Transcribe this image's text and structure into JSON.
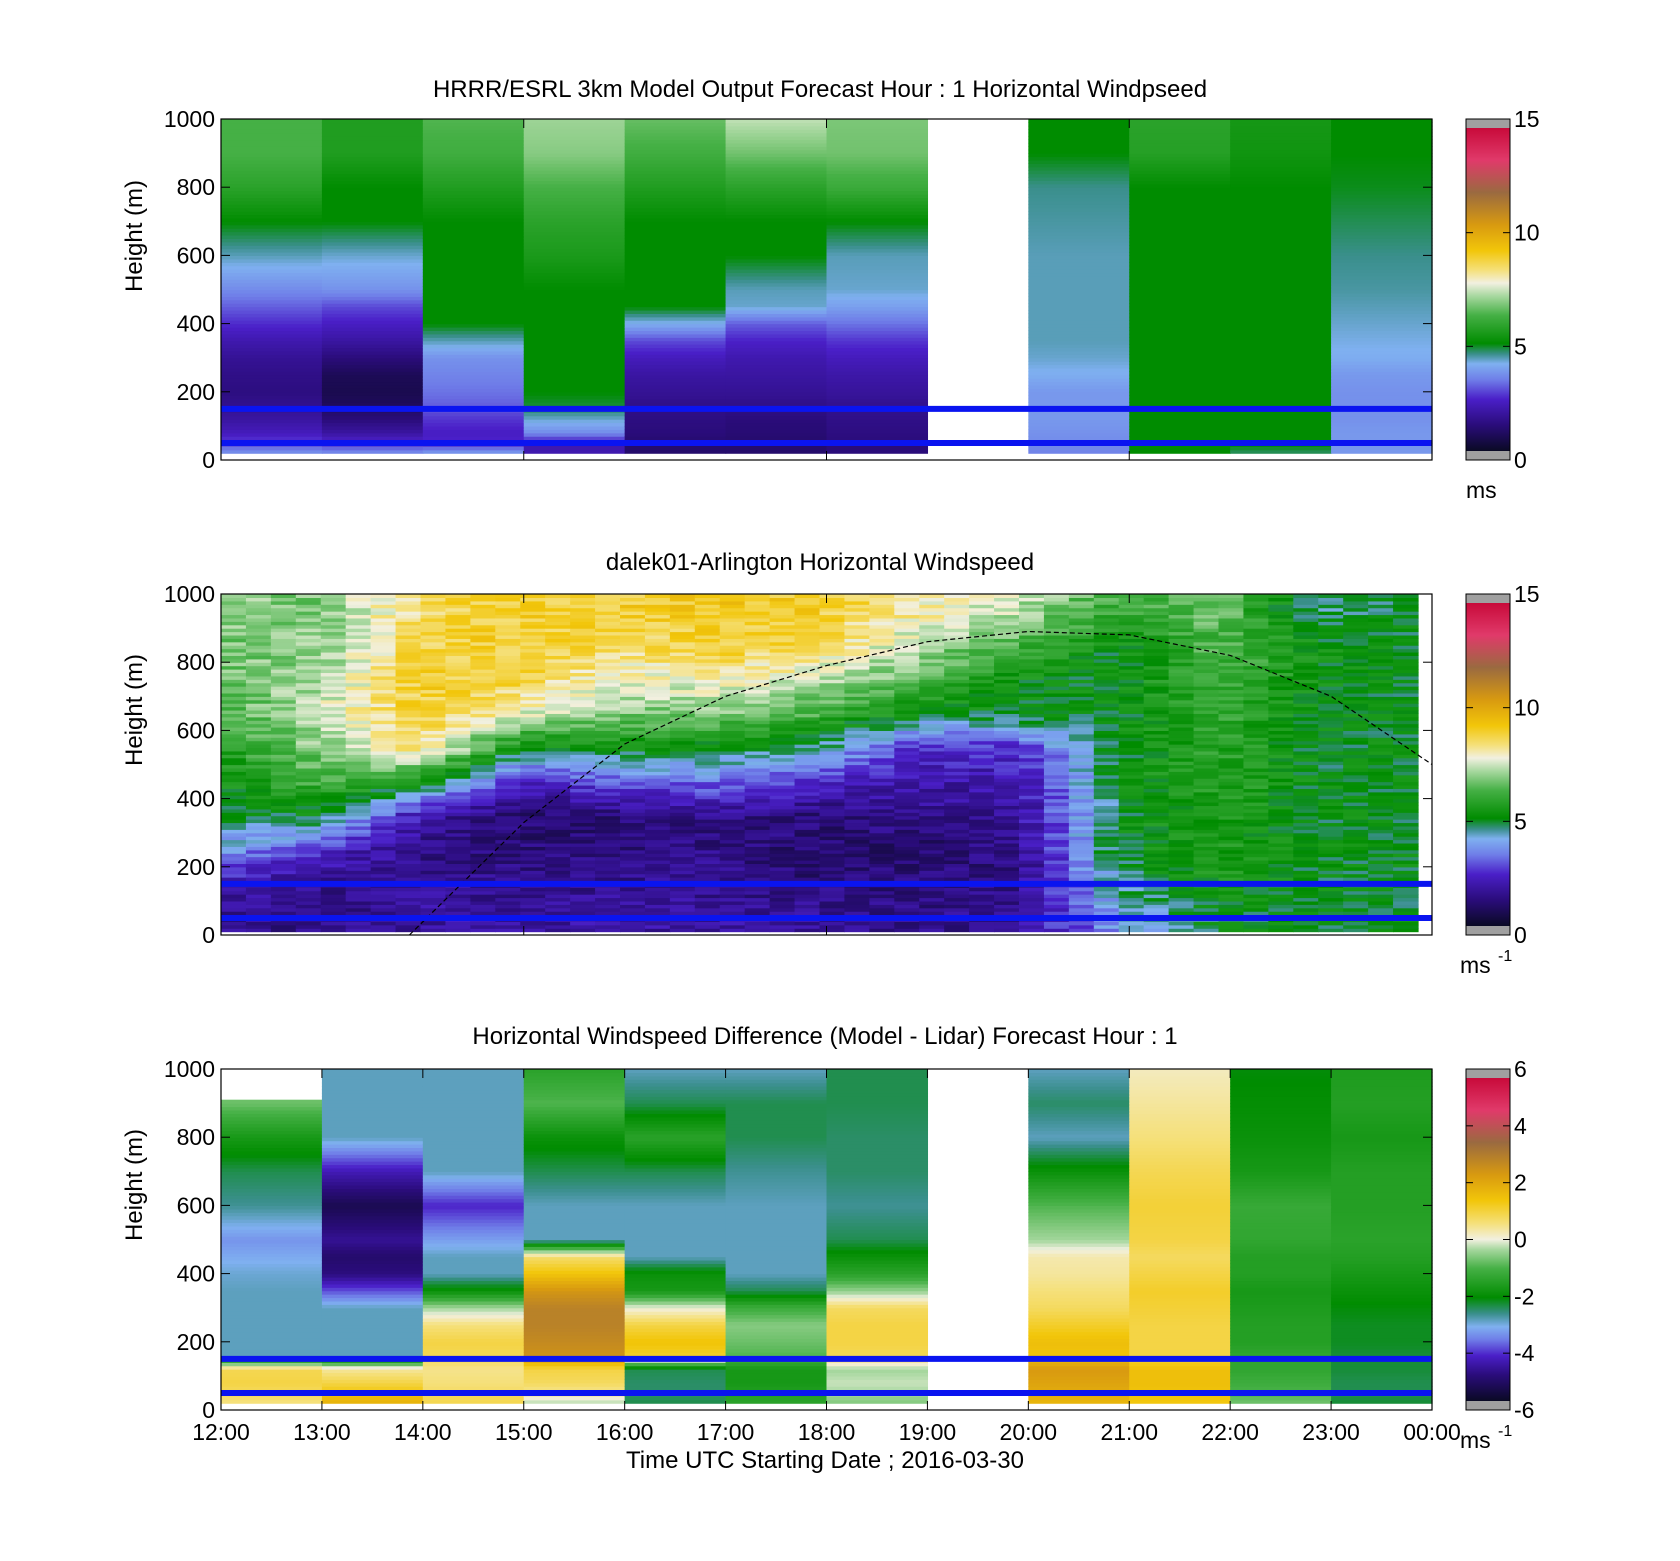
{
  "chart_data": [
    {
      "type": "heatmap",
      "title": "HRRR/ESRL 3km Model Output   Forecast Hour : 1 Horizontal Windpseed",
      "ylabel": "Height (m)",
      "xlabel": "",
      "ylim": [
        0,
        1000
      ],
      "yticks": [
        "0",
        "200",
        "400",
        "600",
        "800",
        "1000"
      ],
      "xticks": [
        "12:00",
        "15:00",
        "18:00",
        "21:00",
        "00:00"
      ],
      "show_xtick_labels": false,
      "colorbar": {
        "min": 0,
        "max": 15,
        "ticks": [
          "0",
          "5",
          "10",
          "15"
        ],
        "unit": "ms",
        "unit_sup": ""
      },
      "x_hours": [
        "12:00",
        "13:00",
        "14:00",
        "15:00",
        "16:00",
        "17:00",
        "18:00",
        "19:00",
        "20:00",
        "21:00",
        "22:00",
        "23:00"
      ],
      "height_levels_m": [
        25,
        50,
        80,
        120,
        160,
        200,
        250,
        300,
        350,
        400,
        450,
        500,
        600,
        700,
        800,
        900,
        1000
      ],
      "values": [
        [
          3.5,
          2.8,
          2.2,
          1.8,
          1.5,
          1.3,
          1.4,
          1.6,
          2.0,
          2.5,
          3.0,
          3.5,
          4.3,
          5.0,
          5.8,
          6.3,
          6.3
        ],
        [
          3.4,
          2.6,
          1.8,
          1.2,
          0.8,
          0.6,
          0.7,
          1.2,
          1.8,
          2.3,
          2.8,
          3.6,
          4.2,
          5.0,
          5.0,
          5.6,
          5.6
        ],
        [
          3.6,
          2.5,
          2.3,
          2.6,
          3.0,
          3.2,
          3.4,
          3.6,
          4.3,
          5.0,
          5.0,
          5.0,
          5.0,
          5.0,
          5.6,
          6.2,
          6.4
        ],
        [
          2.0,
          2.0,
          3.5,
          4.2,
          4.8,
          5.0,
          5.0,
          5.0,
          5.0,
          5.0,
          5.0,
          5.0,
          5.5,
          5.8,
          6.3,
          6.9,
          7.1
        ],
        [
          1.0,
          1.0,
          1.2,
          1.3,
          1.4,
          1.6,
          1.8,
          2.2,
          2.8,
          4.0,
          5.0,
          5.0,
          5.0,
          5.0,
          5.6,
          6.2,
          6.6
        ],
        [
          1.0,
          1.0,
          1.1,
          1.2,
          1.4,
          1.6,
          1.8,
          2.0,
          2.4,
          3.0,
          4.2,
          4.3,
          5.0,
          5.0,
          5.8,
          6.7,
          7.4
        ],
        [
          1.2,
          1.2,
          1.3,
          1.4,
          1.5,
          1.7,
          1.9,
          2.2,
          2.6,
          3.2,
          3.8,
          4.2,
          4.3,
          5.0,
          6.1,
          6.7,
          6.8
        ],
        [
          null,
          null,
          null,
          null,
          null,
          null,
          null,
          null,
          null,
          null,
          null,
          null,
          null,
          null,
          null,
          null,
          null
        ],
        [
          3.4,
          3.5,
          3.6,
          3.7,
          3.7,
          3.7,
          4.0,
          4.2,
          4.3,
          4.3,
          4.3,
          4.3,
          4.3,
          4.4,
          4.5,
          5.0,
          5.0
        ],
        [
          5.0,
          5.0,
          5.0,
          5.0,
          5.0,
          5.0,
          5.0,
          5.0,
          5.0,
          5.0,
          5.0,
          5.0,
          5.0,
          5.0,
          5.0,
          5.7,
          5.8
        ],
        [
          4.7,
          5.0,
          5.0,
          5.0,
          5.0,
          5.0,
          5.0,
          5.0,
          5.0,
          5.0,
          5.0,
          5.0,
          5.0,
          5.0,
          5.0,
          5.3,
          5.4
        ],
        [
          3.7,
          3.7,
          3.7,
          3.6,
          3.6,
          3.6,
          3.7,
          4.0,
          4.1,
          4.2,
          4.3,
          4.4,
          4.5,
          4.7,
          4.9,
          5.0,
          5.0
        ]
      ],
      "reference_lines_m": [
        50,
        150
      ]
    },
    {
      "type": "heatmap",
      "title": "dalek01-Arlington  Horizontal Windspeed",
      "ylabel": "Height (m)",
      "xlabel": "",
      "ylim": [
        0,
        1000
      ],
      "yticks": [
        "0",
        "200",
        "400",
        "600",
        "800",
        "1000"
      ],
      "xticks": [
        "12:00",
        "15:00",
        "18:00",
        "21:00",
        "00:00"
      ],
      "show_xtick_labels": false,
      "colorbar": {
        "min": 0,
        "max": 15,
        "ticks": [
          "0",
          "5",
          "10",
          "15"
        ],
        "unit": "ms",
        "unit_sup": "-1"
      },
      "profile_samples": [
        {
          "time": "12:00",
          "h": [
            50,
            150,
            250,
            350,
            450,
            550,
            650,
            750,
            850,
            950
          ],
          "v": [
            1.5,
            2.0,
            3.8,
            4.8,
            5.2,
            5.6,
            6.2,
            6.6,
            6.8,
            7.0
          ]
        },
        {
          "time": "13:00",
          "h": [
            50,
            150,
            250,
            350,
            450,
            550,
            650,
            750,
            850,
            950
          ],
          "v": [
            1.4,
            1.5,
            2.4,
            5.0,
            6.2,
            7.0,
            7.5,
            7.2,
            7.0,
            6.8
          ]
        },
        {
          "time": "14:00",
          "h": [
            50,
            150,
            250,
            350,
            450,
            550,
            650,
            750,
            850,
            950
          ],
          "v": [
            1.8,
            1.6,
            1.4,
            1.8,
            5.5,
            8.5,
            9.0,
            9.0,
            8.8,
            8.6
          ]
        },
        {
          "time": "15:00",
          "h": [
            50,
            150,
            250,
            350,
            450,
            550,
            650,
            750,
            850,
            950
          ],
          "v": [
            1.8,
            1.5,
            1.2,
            1.0,
            2.2,
            5.0,
            7.8,
            8.8,
            9.0,
            9.0
          ]
        },
        {
          "time": "16:00",
          "h": [
            50,
            150,
            250,
            350,
            450,
            550,
            650,
            750,
            850,
            950
          ],
          "v": [
            1.8,
            1.5,
            1.2,
            1.2,
            3.0,
            5.2,
            6.8,
            7.8,
            8.5,
            9.0
          ]
        },
        {
          "time": "17:00",
          "h": [
            50,
            150,
            250,
            350,
            450,
            550,
            650,
            750,
            850,
            950
          ],
          "v": [
            1.8,
            1.5,
            1.4,
            1.4,
            3.2,
            5.0,
            6.8,
            8.0,
            9.0,
            9.2
          ]
        },
        {
          "time": "18:00",
          "h": [
            50,
            150,
            250,
            350,
            450,
            550,
            650,
            750,
            850,
            950
          ],
          "v": [
            1.6,
            1.2,
            1.0,
            1.2,
            2.4,
            4.5,
            6.2,
            7.4,
            8.6,
            9.0
          ]
        },
        {
          "time": "19:00",
          "h": [
            50,
            150,
            250,
            350,
            450,
            550,
            650,
            750,
            850,
            950
          ],
          "v": [
            1.4,
            1.2,
            1.0,
            1.5,
            1.8,
            2.4,
            5.0,
            6.5,
            7.2,
            8.2
          ]
        },
        {
          "time": "20:00",
          "h": [
            50,
            150,
            250,
            350,
            450,
            550,
            650,
            750,
            850,
            950
          ],
          "v": [
            1.6,
            1.4,
            1.4,
            1.6,
            2.0,
            2.6,
            5.0,
            5.2,
            6.2,
            7.4
          ]
        },
        {
          "time": "21:00",
          "h": [
            50,
            150,
            250,
            350,
            450,
            550,
            650,
            750,
            850,
            950
          ],
          "v": [
            3.8,
            4.5,
            5.0,
            5.0,
            5.0,
            5.0,
            5.0,
            5.0,
            5.0,
            6.0
          ]
        },
        {
          "time": "22:00",
          "h": [
            50,
            150,
            250,
            350,
            450,
            550,
            650,
            750,
            850,
            950
          ],
          "v": [
            5.0,
            5.4,
            5.6,
            5.6,
            5.8,
            5.8,
            6.0,
            6.2,
            6.4,
            6.6
          ]
        },
        {
          "time": "23:00",
          "h": [
            50,
            150,
            250,
            350,
            450,
            550,
            650,
            750,
            850,
            950
          ],
          "v": [
            5.0,
            5.0,
            5.0,
            5.0,
            5.0,
            5.0,
            5.0,
            5.2,
            5.2,
            4.5
          ]
        },
        {
          "time": "00:00",
          "h": [
            50,
            150,
            250,
            350,
            450,
            550,
            650,
            750,
            850,
            950
          ],
          "v": [
            5.0,
            5.0,
            5.0,
            5.0,
            5.0,
            5.0,
            5.0,
            5.0,
            5.0,
            5.0
          ]
        }
      ],
      "boundary_layer_curve": {
        "time": [
          "13:52",
          "15:00",
          "16:00",
          "17:00",
          "18:00",
          "19:00",
          "20:00",
          "21:00",
          "22:00",
          "23:00",
          "00:00"
        ],
        "height_m": [
          0,
          330,
          560,
          700,
          790,
          860,
          890,
          880,
          820,
          700,
          500
        ]
      },
      "reference_lines_m": [
        50,
        150
      ]
    },
    {
      "type": "heatmap",
      "title": "Horizontal Windspeed Difference (Model - Lidar) Forecast Hour : 1",
      "ylabel": "Height (m)",
      "xlabel": "Time UTC  Starting Date ; 2016-03-30",
      "ylim": [
        0,
        1000
      ],
      "yticks": [
        "0",
        "200",
        "400",
        "600",
        "800",
        "1000"
      ],
      "xticks": [
        "12:00",
        "13:00",
        "14:00",
        "15:00",
        "16:00",
        "17:00",
        "18:00",
        "19:00",
        "20:00",
        "21:00",
        "22:00",
        "23:00",
        "00:00"
      ],
      "show_xtick_labels": true,
      "colorbar": {
        "min": -6,
        "max": 6,
        "ticks": [
          "-6",
          "-4",
          "-2",
          "0",
          "2",
          "4",
          "6"
        ],
        "unit": "ms",
        "unit_sup": "-1"
      },
      "x_hours": [
        "12:00",
        "13:00",
        "14:00",
        "15:00",
        "16:00",
        "17:00",
        "18:00",
        "19:00",
        "20:00",
        "21:00",
        "22:00",
        "23:00"
      ],
      "height_levels_m": [
        25,
        50,
        80,
        120,
        160,
        200,
        250,
        300,
        350,
        400,
        450,
        500,
        600,
        700,
        800,
        900,
        1000
      ],
      "values": [
        [
          0.6,
          0.8,
          1.0,
          0.9,
          -3.0,
          -3.0,
          -3.0,
          -3.0,
          -3.0,
          -3.1,
          -3.3,
          -3.5,
          -2.8,
          -2.5,
          -1.8,
          -0.8,
          null
        ],
        [
          1.8,
          1.5,
          1.0,
          0.4,
          -3.0,
          -3.0,
          -3.0,
          -3.0,
          -4.0,
          -5.0,
          -5.2,
          -4.8,
          -5.5,
          -4.5,
          -3.0,
          -3.0,
          -3.0
        ],
        [
          0.9,
          0.8,
          0.6,
          0.5,
          0.9,
          1.0,
          0.6,
          -0.4,
          -2.0,
          -3.0,
          -3.0,
          -3.4,
          -4.3,
          -3.0,
          -3.0,
          -3.0,
          -3.0
        ],
        [
          -0.2,
          0.4,
          0.8,
          1.0,
          2.6,
          2.8,
          3.0,
          3.0,
          2.5,
          1.5,
          0.7,
          -3.0,
          -3.0,
          -2.5,
          -2.0,
          -1.0,
          -1.5
        ],
        [
          -2.5,
          -2.6,
          -2.6,
          -2.5,
          1.2,
          1.5,
          1.0,
          0.0,
          -1.8,
          -2.0,
          -3.0,
          -3.0,
          -3.0,
          -2.5,
          -1.5,
          -2.5,
          -3.0
        ],
        [
          -1.5,
          -1.6,
          -1.8,
          -1.8,
          -1.0,
          -0.8,
          -0.6,
          -1.2,
          -2.5,
          -3.0,
          -3.0,
          -3.0,
          -3.0,
          -2.8,
          -2.5,
          -2.5,
          -3.0
        ],
        [
          -0.6,
          -0.4,
          -0.2,
          -0.4,
          0.9,
          1.0,
          1.0,
          0.8,
          -0.5,
          -1.5,
          -2.0,
          -2.5,
          -2.8,
          -2.6,
          -2.6,
          -2.5,
          -2.5
        ],
        [
          null,
          null,
          null,
          null,
          null,
          null,
          null,
          null,
          null,
          null,
          null,
          null,
          null,
          null,
          null,
          null,
          null
        ],
        [
          1.8,
          2.0,
          2.2,
          2.4,
          1.5,
          1.6,
          1.2,
          0.8,
          0.6,
          0.4,
          0.3,
          -0.4,
          -1.0,
          -2.0,
          -3.0,
          -2.6,
          -3.0
        ],
        [
          1.4,
          1.5,
          1.6,
          1.6,
          1.0,
          1.0,
          1.0,
          1.1,
          1.2,
          1.0,
          0.8,
          1.0,
          1.1,
          0.9,
          0.6,
          0.4,
          0.2
        ],
        [
          -0.8,
          -1.0,
          -1.2,
          -1.4,
          -1.4,
          -1.6,
          -1.6,
          -1.7,
          -1.8,
          -1.6,
          -1.6,
          -1.4,
          -1.3,
          -1.8,
          -2.0,
          -2.1,
          -2.2
        ],
        [
          -2.4,
          -2.5,
          -2.5,
          -2.4,
          -2.4,
          -2.3,
          -2.3,
          -2.2,
          -2.0,
          -1.8,
          -1.6,
          -1.5,
          -1.6,
          -1.6,
          -1.8,
          -1.6,
          -1.7
        ]
      ],
      "reference_lines_m": [
        50,
        150
      ]
    }
  ]
}
